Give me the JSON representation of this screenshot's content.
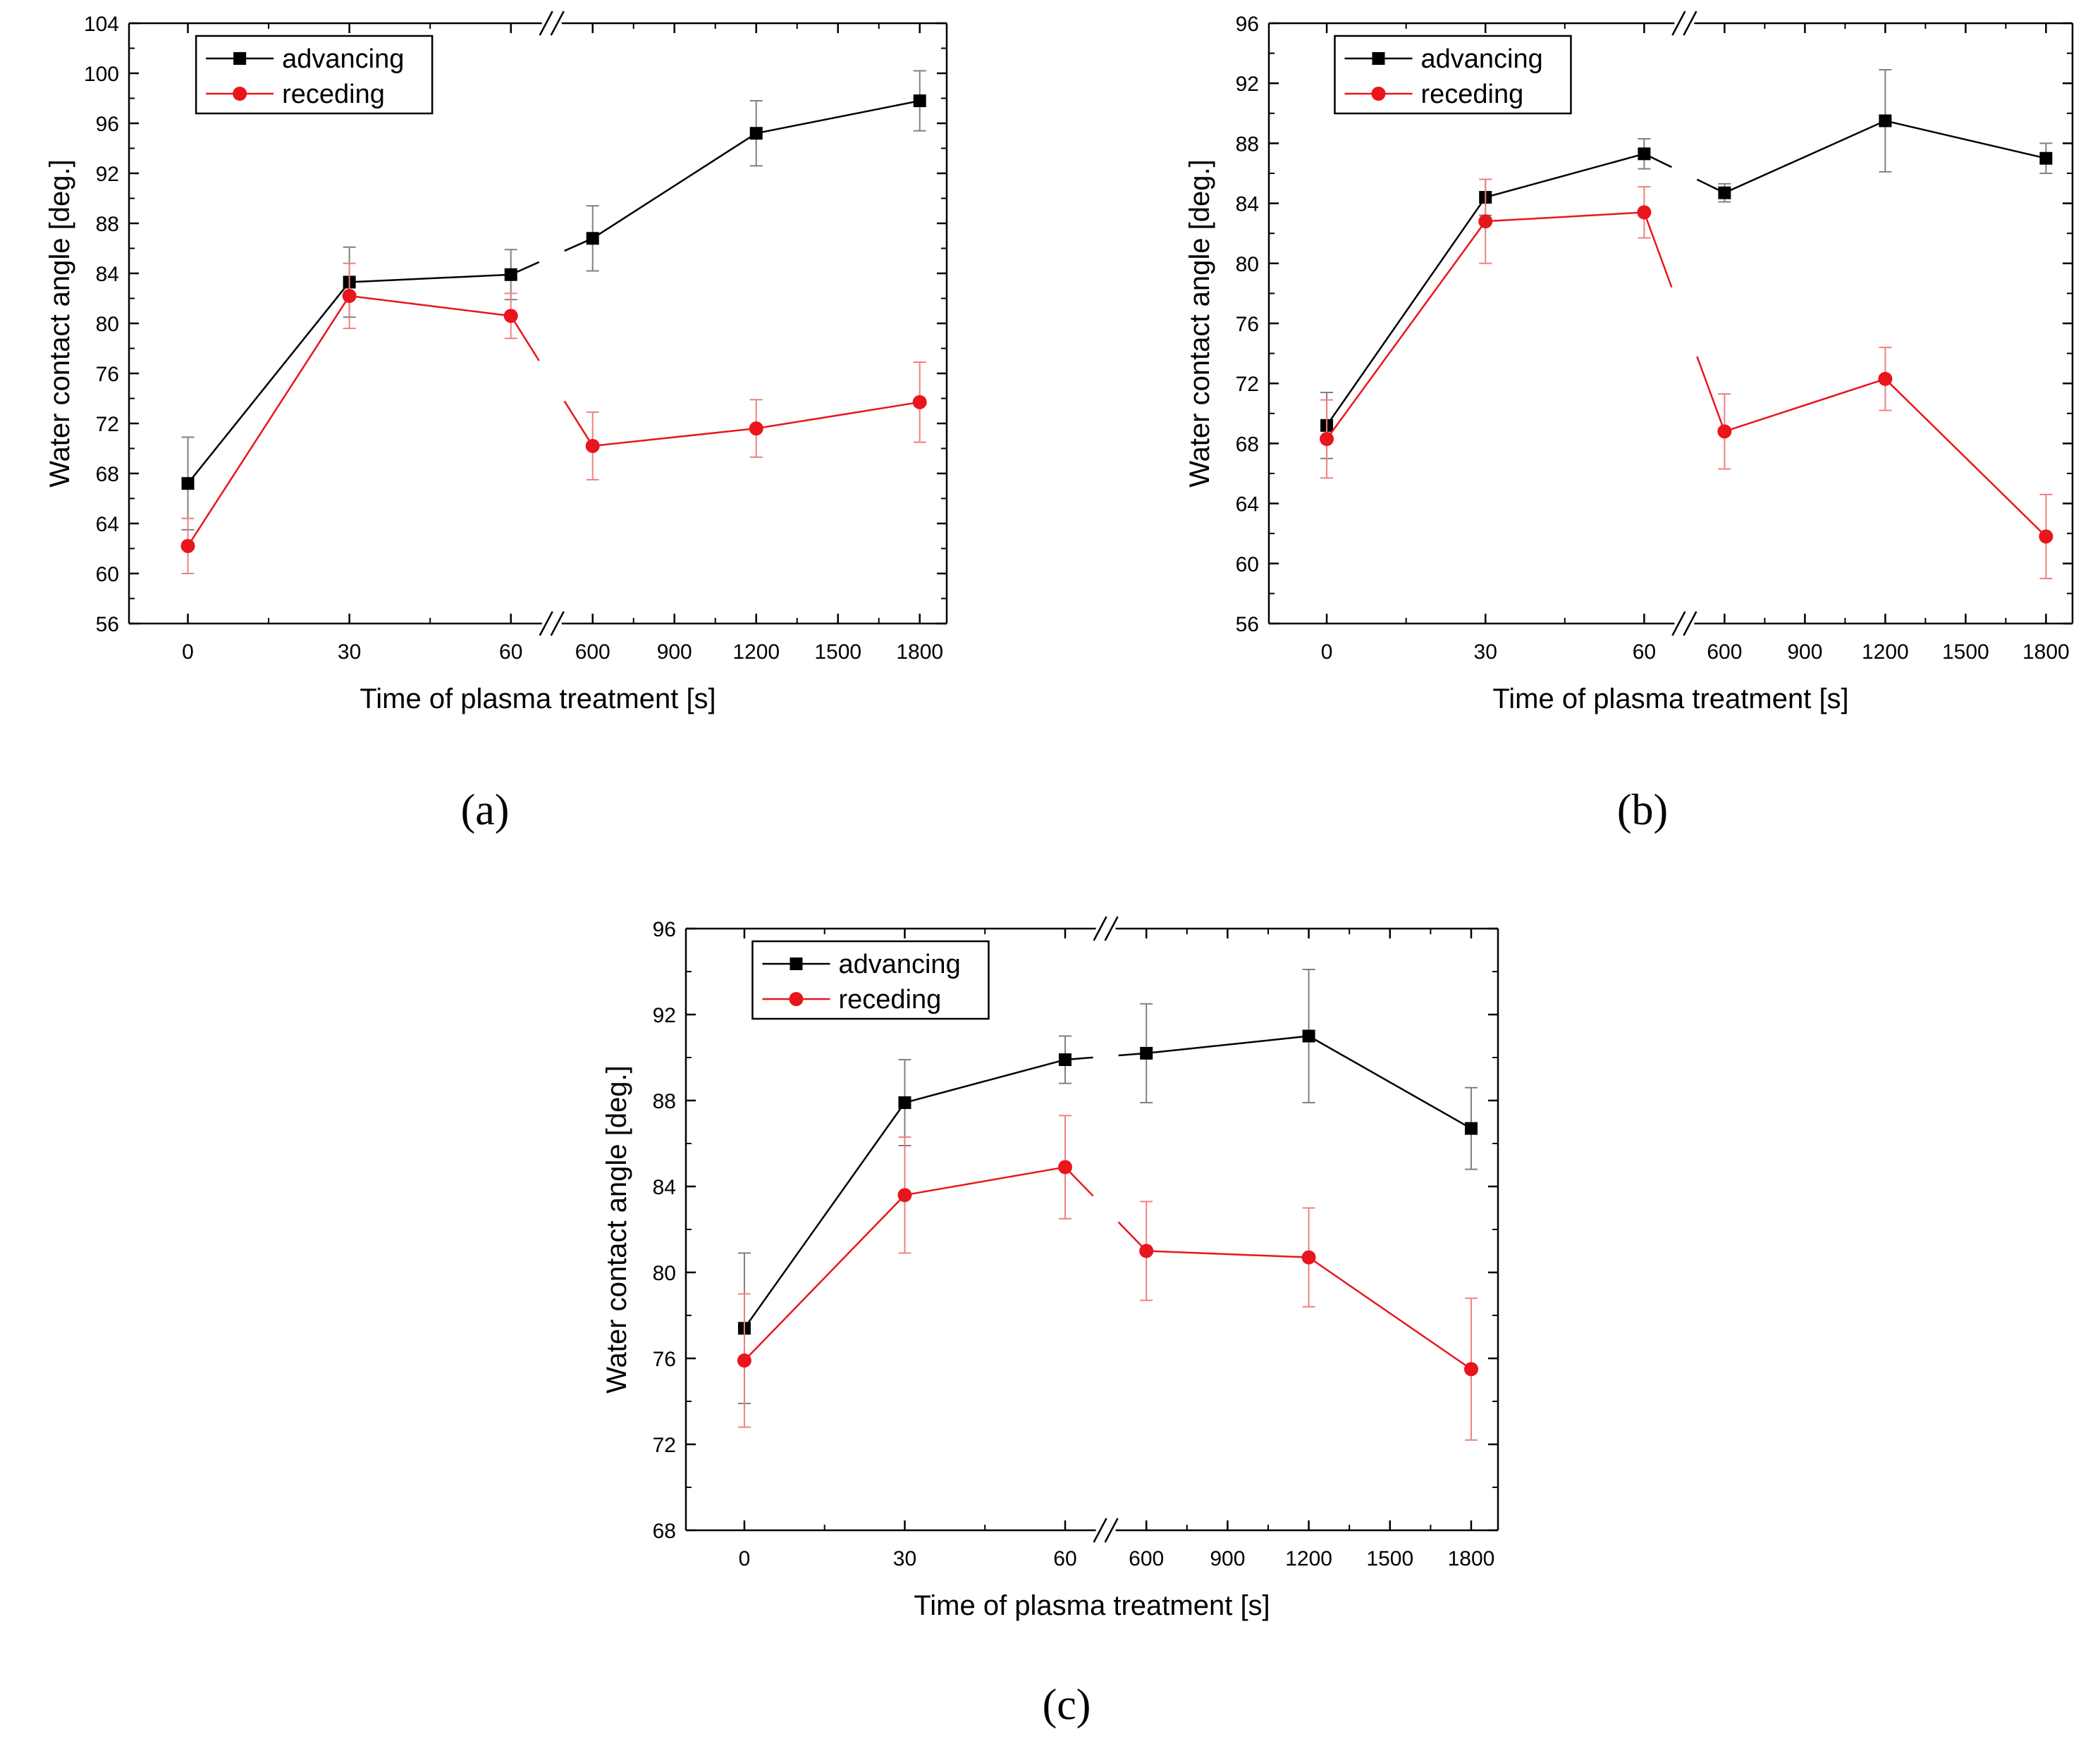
{
  "figure": {
    "panel_labels": [
      "(a)",
      "(b)",
      "(c)"
    ]
  },
  "chart_data": [
    {
      "type": "line",
      "panel": "(a)",
      "xlabel": "Time of plasma treatment [s]",
      "ylabel": "Water contact angle [deg.]",
      "ylim": [
        56,
        104
      ],
      "yticks": [
        "56",
        "60",
        "64",
        "68",
        "72",
        "76",
        "80",
        "84",
        "88",
        "92",
        "96",
        "100",
        "104"
      ],
      "x_categories": [
        "0",
        "30",
        "60",
        "600",
        "900",
        "1200",
        "1500",
        "1800"
      ],
      "x_axis_break": "between 60 and 600",
      "legend": [
        "advancing",
        "receding"
      ],
      "legend_position": "top-left",
      "series": [
        {
          "name": "advancing",
          "color": "#000000",
          "marker": "square",
          "x": [
            0,
            30,
            60,
            600,
            1200,
            1800
          ],
          "values": [
            67.2,
            83.3,
            83.9,
            86.8,
            95.2,
            97.8
          ],
          "errors": [
            3.7,
            2.8,
            2.0,
            2.6,
            2.6,
            2.4
          ]
        },
        {
          "name": "receding",
          "color": "#e8161c",
          "marker": "circle",
          "x": [
            0,
            30,
            60,
            600,
            1200,
            1800
          ],
          "values": [
            62.2,
            82.2,
            80.6,
            70.2,
            71.6,
            73.7
          ],
          "errors": [
            2.2,
            2.6,
            1.8,
            2.7,
            2.3,
            3.2
          ]
        }
      ]
    },
    {
      "type": "line",
      "panel": "(b)",
      "xlabel": "Time of plasma treatment [s]",
      "ylabel": "Water contact angle [deg.]",
      "ylim": [
        56,
        96
      ],
      "yticks": [
        "56",
        "60",
        "64",
        "68",
        "72",
        "76",
        "80",
        "84",
        "88",
        "92",
        "96"
      ],
      "x_categories": [
        "0",
        "30",
        "60",
        "600",
        "900",
        "1200",
        "1500",
        "1800"
      ],
      "x_axis_break": "between 60 and 600",
      "legend": [
        "advancing",
        "receding"
      ],
      "legend_position": "top-left",
      "series": [
        {
          "name": "advancing",
          "color": "#000000",
          "marker": "square",
          "x": [
            0,
            30,
            60,
            600,
            1200,
            1800
          ],
          "values": [
            69.2,
            84.4,
            87.3,
            84.7,
            89.5,
            87.0
          ],
          "errors": [
            2.2,
            1.2,
            1.0,
            0.6,
            3.4,
            1.0
          ]
        },
        {
          "name": "receding",
          "color": "#e8161c",
          "marker": "circle",
          "x": [
            0,
            30,
            60,
            600,
            1200,
            1800
          ],
          "values": [
            68.3,
            82.8,
            83.4,
            68.8,
            72.3,
            61.8
          ],
          "errors": [
            2.6,
            2.8,
            1.7,
            2.5,
            2.1,
            2.8
          ]
        }
      ]
    },
    {
      "type": "line",
      "panel": "(c)",
      "xlabel": "Time of plasma treatment [s]",
      "ylabel": "Water contact angle [deg.]",
      "ylim": [
        68,
        96
      ],
      "yticks": [
        "68",
        "72",
        "76",
        "80",
        "84",
        "88",
        "92",
        "96"
      ],
      "x_categories": [
        "0",
        "30",
        "60",
        "600",
        "900",
        "1200",
        "1500",
        "1800"
      ],
      "x_axis_break": "between 60 and 600",
      "legend": [
        "advancing",
        "receding"
      ],
      "legend_position": "top-left",
      "series": [
        {
          "name": "advancing",
          "color": "#000000",
          "marker": "square",
          "x": [
            0,
            30,
            60,
            600,
            1200,
            1800
          ],
          "values": [
            77.4,
            87.9,
            89.9,
            90.2,
            91.0,
            86.7
          ],
          "errors": [
            3.5,
            2.0,
            1.1,
            2.3,
            3.1,
            1.9
          ]
        },
        {
          "name": "receding",
          "color": "#e8161c",
          "marker": "circle",
          "x": [
            0,
            30,
            60,
            600,
            1200,
            1800
          ],
          "values": [
            75.9,
            83.6,
            84.9,
            81.0,
            80.7,
            75.5
          ],
          "errors": [
            3.1,
            2.7,
            2.4,
            2.3,
            2.3,
            3.3
          ]
        }
      ]
    }
  ]
}
